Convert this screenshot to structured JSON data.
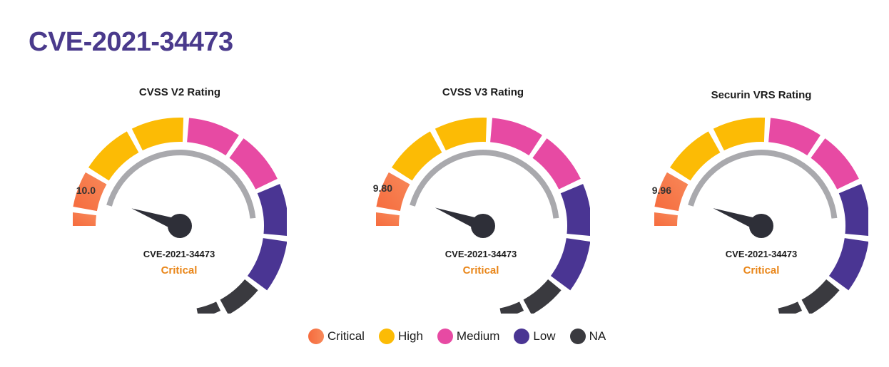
{
  "page": {
    "title": "CVE-2021-34473"
  },
  "colors": {
    "critical": [
      "#f66b3d",
      "#f7895a"
    ],
    "high": "#fcbb05",
    "medium": "#e74aa3",
    "low": "#4a3593",
    "na": "#3a3a3f",
    "inner_arc": "#a9a9ad",
    "needle": "#2e2f38"
  },
  "gauges": [
    {
      "title": "CVSS V2 Rating",
      "score": "10.0",
      "cve": "CVE-2021-34473",
      "severity": "Critical"
    },
    {
      "title": "CVSS V3 Rating",
      "score": "9.80",
      "cve": "CVE-2021-34473",
      "severity": "Critical"
    },
    {
      "title": "Securin VRS Rating",
      "score": "9.96",
      "cve": "CVE-2021-34473",
      "severity": "Critical"
    }
  ],
  "legend": [
    {
      "label": "Critical",
      "color": "critical"
    },
    {
      "label": "High",
      "color": "high"
    },
    {
      "label": "Medium",
      "color": "medium"
    },
    {
      "label": "Low",
      "color": "low"
    },
    {
      "label": "NA",
      "color": "na"
    }
  ],
  "chart_data": [
    {
      "type": "gauge",
      "title": "CVSS V2 Rating",
      "value": 10.0,
      "range": [
        0,
        10
      ],
      "category": "Critical",
      "center_text": "CVE-2021-34473"
    },
    {
      "type": "gauge",
      "title": "CVSS V3 Rating",
      "value": 9.8,
      "range": [
        0,
        10
      ],
      "category": "Critical",
      "center_text": "CVE-2021-34473"
    },
    {
      "type": "gauge",
      "title": "Securin VRS Rating",
      "value": 9.96,
      "range": [
        0,
        10
      ],
      "category": "Critical",
      "center_text": "CVE-2021-34473"
    }
  ]
}
